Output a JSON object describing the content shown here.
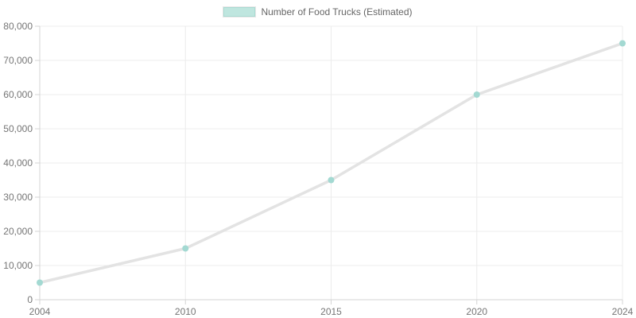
{
  "colors": {
    "series_point": "#a3d9d2",
    "series_line": "#e3e3e3",
    "legend_fill": "#bfe6df",
    "legend_border": "#a9dbd3",
    "legend_outline": "#e6e6e6",
    "gridline": "#ececec",
    "axis_border": "#d4d4d4",
    "tick_text": "#757575",
    "background": "#ffffff"
  },
  "chart_data": {
    "type": "line",
    "title": "",
    "xlabel": "",
    "ylabel": "",
    "categories": [
      "2004",
      "2010",
      "2015",
      "2020",
      "2024"
    ],
    "series": [
      {
        "name": "Number of Food Trucks (Estimated)",
        "values": [
          5000,
          15000,
          35000,
          60000,
          75000
        ]
      }
    ],
    "ylim": [
      0,
      80000
    ],
    "y_tick_step": 10000,
    "y_tick_format": "thousands-comma",
    "grid": true,
    "legend_position": "top-center",
    "point_radius": 4,
    "line_width": 3.5
  }
}
